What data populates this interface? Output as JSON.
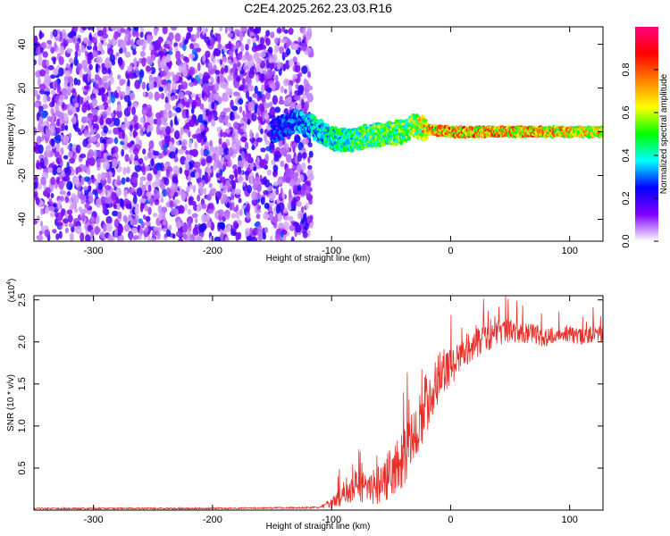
{
  "figure_title": "C2E4.2025.262.23.03.R16",
  "chart_data": [
    {
      "type": "heatmap",
      "panel": "spectrogram",
      "xlabel": "Height of straight line (km)",
      "ylabel": "Frequency (Hz)",
      "xlim": [
        -350,
        128
      ],
      "ylim": [
        -50,
        48
      ],
      "xticks": [
        -300,
        -200,
        -100,
        0,
        100
      ],
      "yticks": [
        -40,
        -20,
        0,
        20,
        40
      ],
      "xtick_labels": [
        "-300",
        "-200",
        "-100",
        "0",
        "100"
      ],
      "ytick_labels": [
        "-40",
        "-20",
        "0",
        "20",
        "40"
      ],
      "noise_region_x": [
        -350,
        -117
      ],
      "signal_track": {
        "description": "narrow-band signal near 0 Hz",
        "x": [
          -150,
          -130,
          -115,
          -100,
          -85,
          -70,
          -55,
          -40,
          -30,
          -20,
          0,
          50,
          100,
          128
        ],
        "center_freq": [
          0,
          5,
          2,
          -3,
          -4,
          -2,
          -1,
          0,
          3,
          1,
          0,
          0,
          0,
          0
        ],
        "amplitude": [
          0.3,
          0.35,
          0.45,
          0.5,
          0.55,
          0.6,
          0.6,
          0.6,
          0.65,
          0.8,
          0.85,
          0.85,
          0.8,
          0.75
        ]
      }
    },
    {
      "type": "colorbar",
      "panel": "colorbar",
      "label": "Normalized spectral amplitude",
      "range": [
        0,
        1
      ],
      "ticks": [
        0,
        0.2,
        0.4,
        0.6,
        0.8
      ],
      "tick_labels": [
        "0.0",
        "0.2",
        "0.4",
        "0.6",
        "0.8"
      ],
      "colors": [
        "#ffffff",
        "#8000ff",
        "#0000ff",
        "#00ffff",
        "#00ff00",
        "#ffff00",
        "#ff8000",
        "#ff0000",
        "#ff0080"
      ]
    },
    {
      "type": "line",
      "panel": "snr",
      "xlabel": "Height of straight line (km)",
      "ylabel": "SNR (10 * v/v)",
      "y_multiplier_label": "(x10",
      "y_multiplier_exp": "4",
      "y_multiplier_close": ")",
      "xlim": [
        -350,
        128
      ],
      "ylim": [
        0,
        2.55
      ],
      "xticks": [
        -300,
        -200,
        -100,
        0,
        100
      ],
      "yticks": [
        0.5,
        1.0,
        1.5,
        2.0,
        2.5
      ],
      "xtick_labels": [
        "-300",
        "-200",
        "-100",
        "0",
        "100"
      ],
      "ytick_labels": [
        "0.5",
        "1.0",
        "1.5",
        "2.0",
        "2.5"
      ],
      "line_color": "#e8302a",
      "series": [
        {
          "name": "SNR",
          "x": [
            -350,
            -200,
            -110,
            -100,
            -90,
            -80,
            -70,
            -60,
            -50,
            -40,
            -30,
            -20,
            -10,
            0,
            10,
            20,
            30,
            40,
            50,
            60,
            70,
            80,
            90,
            100,
            110,
            120,
            128
          ],
          "y": [
            0.02,
            0.02,
            0.03,
            0.08,
            0.2,
            0.3,
            0.25,
            0.3,
            0.45,
            0.6,
            0.9,
            1.3,
            1.6,
            1.7,
            1.85,
            2.0,
            2.05,
            2.1,
            2.15,
            2.1,
            2.1,
            2.05,
            2.1,
            2.1,
            2.05,
            2.1,
            2.1
          ],
          "noise_amplitude": [
            0.01,
            0.01,
            0.01,
            0.06,
            0.15,
            0.2,
            0.2,
            0.25,
            0.3,
            0.35,
            0.35,
            0.4,
            0.3,
            0.25,
            0.2,
            0.2,
            0.18,
            0.15,
            0.15,
            0.12,
            0.12,
            0.12,
            0.1,
            0.1,
            0.1,
            0.1,
            0.1
          ]
        }
      ]
    }
  ]
}
